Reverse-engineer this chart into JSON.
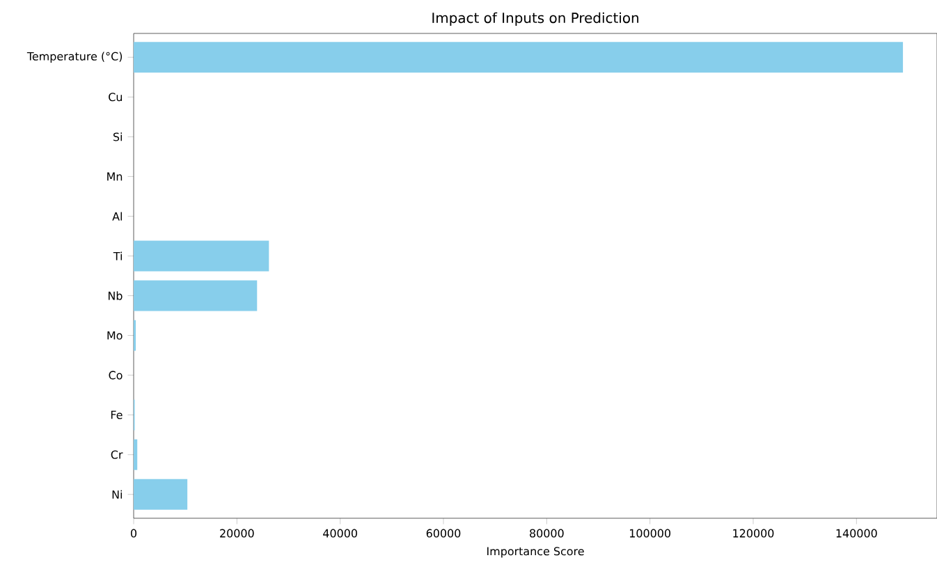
{
  "chart_data": {
    "type": "bar",
    "orientation": "horizontal",
    "title": "Impact of Inputs on Prediction",
    "xlabel": "Importance Score",
    "categories": [
      "Temperature (°C)",
      "Cu",
      "Si",
      "Mn",
      "Al",
      "Ti",
      "Nb",
      "Mo",
      "Co",
      "Fe",
      "Cr",
      "Ni"
    ],
    "values": [
      149000,
      0,
      0,
      0,
      0,
      26200,
      23900,
      400,
      0,
      200,
      700,
      10400
    ],
    "color": "#87ceeb",
    "xlim": [
      0,
      155600
    ],
    "xticks": [
      0,
      20000,
      40000,
      60000,
      80000,
      100000,
      120000,
      140000
    ],
    "grid": false
  }
}
